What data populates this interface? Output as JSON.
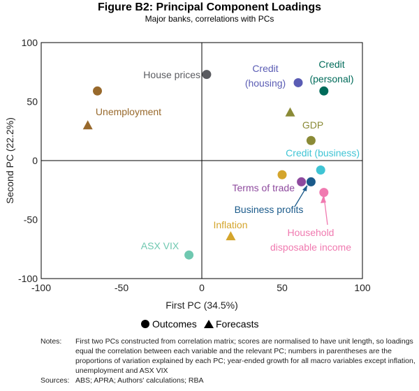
{
  "chart_data": {
    "type": "scatter",
    "title": "Figure B2: Principal Component Loadings",
    "subtitle": "Major banks, correlations with PCs",
    "xlabel": "First PC (34.5%)",
    "ylabel": "Second PC (22.2%)",
    "xlim": [
      -100,
      100
    ],
    "ylim": [
      -100,
      100
    ],
    "xticks": [
      "-100",
      "-50",
      "0",
      "50",
      "100"
    ],
    "yticks": [
      "100",
      "50",
      "0",
      "-50",
      "-100"
    ],
    "legend": {
      "placement": "bottom",
      "items": [
        "Outcomes",
        "Forecasts"
      ]
    },
    "series": [
      {
        "name": "House prices",
        "color": "#5a5b60",
        "points": [
          {
            "x": 3,
            "y": 73,
            "type": "outcome"
          }
        ]
      },
      {
        "name": "Unemployment",
        "color": "#98692c",
        "points": [
          {
            "x": -65,
            "y": 59,
            "type": "outcome"
          },
          {
            "x": -71,
            "y": 30,
            "type": "forecast"
          }
        ]
      },
      {
        "name": "Credit (housing)",
        "color": "#5a5cb4",
        "points": [
          {
            "x": 60,
            "y": 66,
            "type": "outcome"
          }
        ]
      },
      {
        "name": "Credit (personal)",
        "color": "#006b5a",
        "points": [
          {
            "x": 76,
            "y": 59,
            "type": "outcome"
          }
        ]
      },
      {
        "name": "GDP",
        "color": "#8a8a36",
        "points": [
          {
            "x": 68,
            "y": 17,
            "type": "outcome"
          },
          {
            "x": 55,
            "y": 41,
            "type": "forecast"
          }
        ]
      },
      {
        "name": "Credit (business)",
        "color": "#3fc4d4",
        "points": [
          {
            "x": 74,
            "y": -8,
            "type": "outcome"
          }
        ]
      },
      {
        "name": "Inflation",
        "color": "#d4a52c",
        "points": [
          {
            "x": 50,
            "y": -12,
            "type": "outcome"
          },
          {
            "x": 18,
            "y": -64,
            "type": "forecast"
          }
        ]
      },
      {
        "name": "Terms of trade",
        "color": "#8e4a9e",
        "points": [
          {
            "x": 62,
            "y": -18,
            "type": "outcome"
          }
        ]
      },
      {
        "name": "Business profits",
        "color": "#1a5a8a",
        "points": [
          {
            "x": 68,
            "y": -18,
            "type": "outcome"
          }
        ]
      },
      {
        "name": "Household disposable income",
        "color": "#f07ab0",
        "points": [
          {
            "x": 76,
            "y": -27,
            "type": "outcome"
          }
        ]
      },
      {
        "name": "ASX VIX",
        "color": "#6fc8b0",
        "points": [
          {
            "x": -8,
            "y": -80,
            "type": "outcome"
          }
        ]
      }
    ],
    "labels": {
      "house": "House prices",
      "unemp": "Unemployment",
      "ch1": "Credit",
      "ch2": "(housing)",
      "cp1": "Credit",
      "cp2": "(personal)",
      "gdp": "GDP",
      "cb": "Credit (business)",
      "tot": "Terms of trade",
      "bp": "Business profits",
      "infl": "Inflation",
      "hh1": "Household",
      "hh2": "disposable income",
      "vix": "ASX VIX"
    }
  },
  "notes": {
    "notes_label": "Notes:",
    "notes_text": "First two PCs constructed from correlation matrix; scores are normalised to have unit length, so loadings equal the correlation between each variable and the relevant PC; numbers in parentheses are the proportions of variation explained by each PC; year-ended growth for all macro variables except inflation, unemployment and ASX VIX",
    "sources_label": "Sources:",
    "sources_text": "ABS; APRA; Authors' calculations; RBA"
  }
}
